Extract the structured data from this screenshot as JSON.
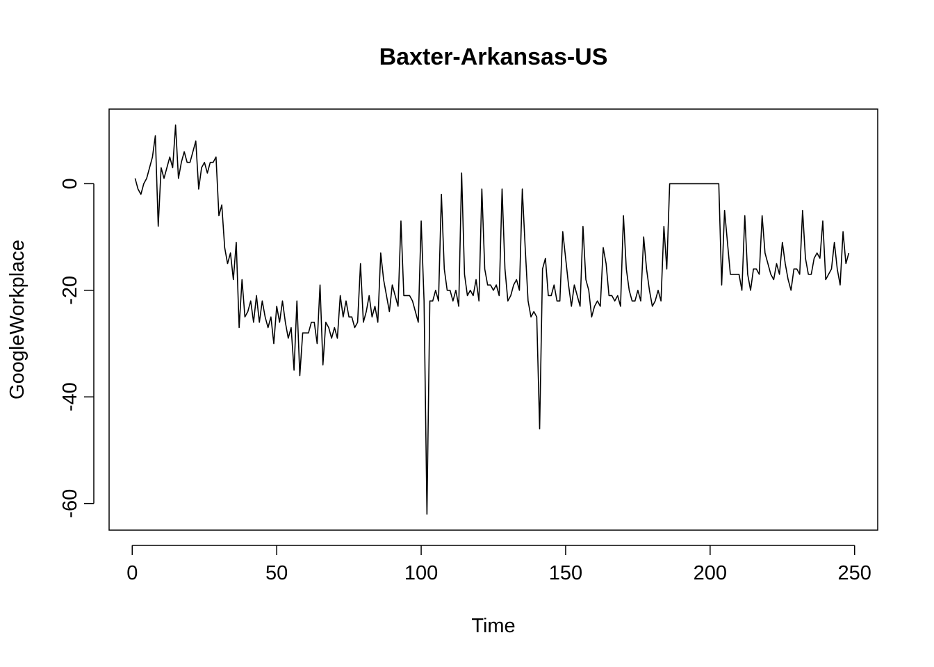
{
  "chart_data": {
    "type": "line",
    "title": "Baxter-Arkansas-US",
    "xlabel": "Time",
    "ylabel": "GoogleWorkplace",
    "xlim": [
      -8,
      258
    ],
    "ylim": [
      -65,
      14
    ],
    "xticks": [
      0,
      50,
      100,
      150,
      200,
      250
    ],
    "yticks": [
      -60,
      -40,
      -20,
      0
    ],
    "xtick_labels": [
      "0",
      "50",
      "100",
      "150",
      "200",
      "250"
    ],
    "ytick_labels": [
      "-60",
      "-40",
      "-20",
      "0"
    ],
    "grid": false,
    "legend": null,
    "series": [
      {
        "color": "#000000",
        "x_start": 1,
        "values": [
          1,
          -1,
          -2,
          0,
          1,
          3,
          5,
          9,
          -8,
          3,
          1,
          3,
          5,
          3,
          11,
          1,
          4,
          6,
          4,
          4,
          6,
          8,
          -1,
          3,
          4,
          2,
          4,
          4,
          5,
          -6,
          -4,
          -12,
          -15,
          -13,
          -18,
          -11,
          -27,
          -18,
          -25,
          -24,
          -22,
          -26,
          -21,
          -26,
          -22,
          -25,
          -27,
          -25,
          -30,
          -23,
          -26,
          -22,
          -26,
          -29,
          -27,
          -35,
          -22,
          -36,
          -28,
          -28,
          -28,
          -26,
          -26,
          -30,
          -19,
          -34,
          -26,
          -27,
          -29,
          -27,
          -29,
          -21,
          -25,
          -22,
          -25,
          -25,
          -27,
          -26,
          -15,
          -26,
          -24,
          -21,
          -25,
          -23,
          -26,
          -13,
          -18,
          -21,
          -24,
          -19,
          -21,
          -23,
          -7,
          -21,
          -21,
          -21,
          -22,
          -24,
          -26,
          -7,
          -22,
          -62,
          -22,
          -22,
          -20,
          -22,
          -2,
          -16,
          -20,
          -20,
          -22,
          -20,
          -23,
          2,
          -17,
          -21,
          -20,
          -21,
          -18,
          -22,
          -1,
          -16,
          -19,
          -19,
          -20,
          -19,
          -21,
          -1,
          -16,
          -22,
          -21,
          -19,
          -18,
          -20,
          -1,
          -12,
          -22,
          -25,
          -24,
          -25,
          -46,
          -16,
          -14,
          -21,
          -21,
          -19,
          -22,
          -22,
          -9,
          -14,
          -19,
          -23,
          -19,
          -21,
          -23,
          -8,
          -18,
          -20,
          -25,
          -23,
          -22,
          -23,
          -12,
          -15,
          -21,
          -21,
          -22,
          -21,
          -23,
          -6,
          -16,
          -20,
          -22,
          -22,
          -20,
          -22,
          -10,
          -16,
          -20,
          -23,
          -22,
          -20,
          -22,
          -8,
          -16,
          0,
          0,
          0,
          0,
          0,
          0,
          0,
          0,
          0,
          0,
          0,
          0,
          0,
          0,
          0,
          0,
          0,
          0,
          -19,
          -5,
          -11,
          -17,
          -17,
          -17,
          -17,
          -20,
          -6,
          -17,
          -20,
          -16,
          -16,
          -17,
          -6,
          -13,
          -15,
          -17,
          -18,
          -15,
          -17,
          -11,
          -15,
          -18,
          -20,
          -16,
          -16,
          -17,
          -5,
          -14,
          -17,
          -17,
          -14,
          -13,
          -14,
          -7,
          -18,
          -17,
          -16,
          -11,
          -16,
          -19,
          -9,
          -15,
          -13
        ]
      }
    ]
  }
}
